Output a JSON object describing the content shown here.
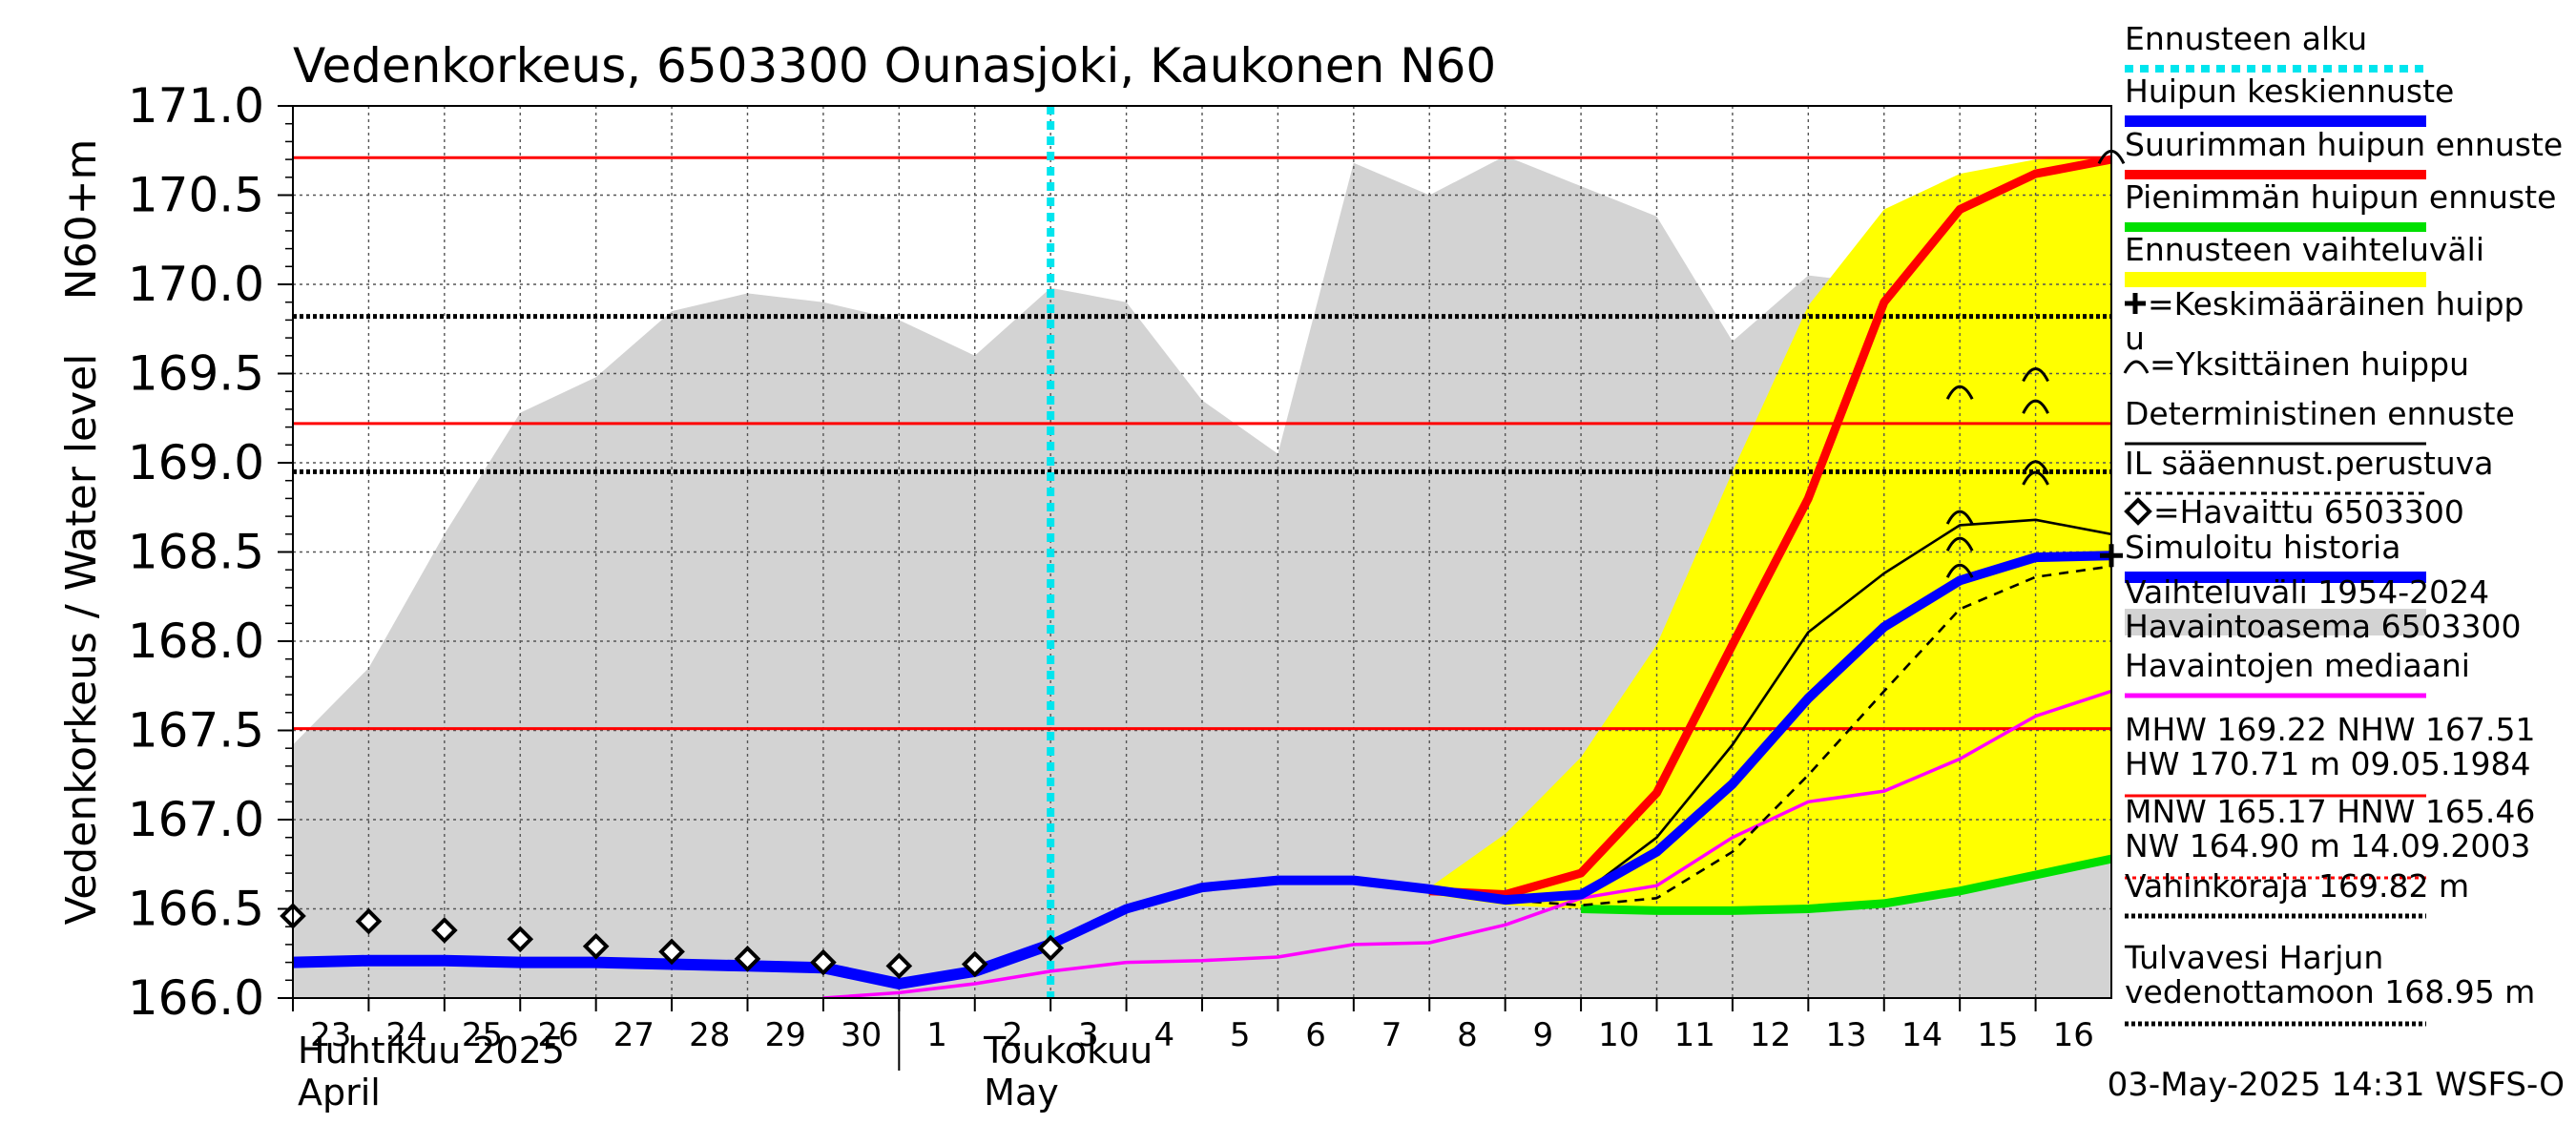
{
  "chart_data": {
    "type": "line",
    "title": "Vedenkorkeus, 6503300 Ounasjoki, Kaukonen N60",
    "ylabel_outer": "Vedenkorkeus / Water level",
    "ylabel_inner": "N60+m",
    "ylim": [
      166.0,
      171.0
    ],
    "y_ticks": [
      "166.0",
      "166.5",
      "167.0",
      "167.5",
      "168.0",
      "168.5",
      "169.0",
      "169.5",
      "170.0",
      "170.5",
      "171.0"
    ],
    "x_days": [
      "2025-04-23",
      "2025-04-24",
      "2025-04-25",
      "2025-04-26",
      "2025-04-27",
      "2025-04-28",
      "2025-04-29",
      "2025-04-30",
      "2025-05-01",
      "2025-05-02",
      "2025-05-03",
      "2025-05-04",
      "2025-05-05",
      "2025-05-06",
      "2025-05-07",
      "2025-05-08",
      "2025-05-09",
      "2025-05-10",
      "2025-05-11",
      "2025-05-12",
      "2025-05-13",
      "2025-05-14",
      "2025-05-15",
      "2025-05-16"
    ],
    "x_tick_labels": [
      "23",
      "24",
      "25",
      "26",
      "27",
      "28",
      "29",
      "30",
      "1",
      "2",
      "3",
      "4",
      "5",
      "6",
      "7",
      "8",
      "9",
      "10",
      "11",
      "12",
      "13",
      "14",
      "15",
      "16"
    ],
    "month_labels": [
      {
        "line1": "Huhtikuu  2025",
        "line2": "April"
      },
      {
        "line1": "Toukokuu",
        "line2": "May"
      }
    ],
    "forecast_start": "2025-05-03",
    "grid": true,
    "reference_lines": [
      {
        "name": "HW",
        "value": 170.71,
        "color": "#ff0000",
        "style": "solid"
      },
      {
        "name": "MHW",
        "value": 169.22,
        "color": "#ff0000",
        "style": "solid"
      },
      {
        "name": "NHW",
        "value": 167.51,
        "color": "#ff0000",
        "style": "solid"
      },
      {
        "name": "Vahinkoraja",
        "value": 169.82,
        "color": "#000000",
        "style": "dotted"
      },
      {
        "name": "Tulvavesi Harjun vedenottamoon",
        "value": 168.95,
        "color": "#000000",
        "style": "dotted"
      }
    ],
    "series": [
      {
        "name": "Vaihteluväli 1954-2024 Havaintoasema 6503300",
        "kind": "area",
        "color": "#d3d3d3",
        "x": [
          "2025-04-23",
          "2025-04-24",
          "2025-04-25",
          "2025-04-26",
          "2025-04-27",
          "2025-04-28",
          "2025-04-29",
          "2025-04-30",
          "2025-05-01",
          "2025-05-02",
          "2025-05-03",
          "2025-05-04",
          "2025-05-05",
          "2025-05-06",
          "2025-05-07",
          "2025-05-08",
          "2025-05-09",
          "2025-05-10",
          "2025-05-11",
          "2025-05-12",
          "2025-05-13",
          "2025-05-14",
          "2025-05-15",
          "2025-05-16",
          "2025-05-17"
        ],
        "values": [
          167.42,
          167.85,
          168.6,
          169.28,
          169.48,
          169.85,
          169.95,
          169.9,
          169.8,
          169.6,
          169.98,
          169.9,
          169.35,
          169.05,
          170.68,
          170.5,
          170.72,
          170.55,
          170.38,
          169.68,
          170.05,
          170.0,
          170.12,
          170.1,
          169.98
        ]
      },
      {
        "name": "Ennusteen vaihteluväli",
        "kind": "band",
        "color": "#ffff00",
        "x": [
          "2025-05-08",
          "2025-05-09",
          "2025-05-10",
          "2025-05-11",
          "2025-05-12",
          "2025-05-13",
          "2025-05-14",
          "2025-05-15",
          "2025-05-16",
          "2025-05-17"
        ],
        "upper": [
          166.62,
          166.92,
          167.35,
          167.98,
          168.95,
          169.88,
          170.42,
          170.62,
          170.7,
          170.72
        ],
        "lower": [
          166.58,
          166.52,
          166.5,
          166.49,
          166.49,
          166.5,
          166.53,
          166.6,
          166.69,
          166.78
        ]
      },
      {
        "name": "Havaintojen mediaani",
        "color": "#ff00ff",
        "x": [
          "2025-04-30",
          "2025-05-01",
          "2025-05-02",
          "2025-05-03",
          "2025-05-04",
          "2025-05-05",
          "2025-05-06",
          "2025-05-07",
          "2025-05-08",
          "2025-05-09",
          "2025-05-10",
          "2025-05-11",
          "2025-05-12",
          "2025-05-13",
          "2025-05-14",
          "2025-05-15",
          "2025-05-16",
          "2025-05-17"
        ],
        "values": [
          166.0,
          166.03,
          166.08,
          166.15,
          166.2,
          166.21,
          166.23,
          166.3,
          166.31,
          166.41,
          166.56,
          166.63,
          166.9,
          167.1,
          167.16,
          167.34,
          167.58,
          167.72
        ]
      },
      {
        "name": "Suurimman huipun ennuste",
        "color": "#ff0000",
        "x": [
          "2025-05-08",
          "2025-05-09",
          "2025-05-10",
          "2025-05-11",
          "2025-05-12",
          "2025-05-13",
          "2025-05-14",
          "2025-05-15",
          "2025-05-16",
          "2025-05-17"
        ],
        "values": [
          166.6,
          166.58,
          166.7,
          167.15,
          167.98,
          168.8,
          169.9,
          170.42,
          170.62,
          170.7
        ]
      },
      {
        "name": "Pienimmän huipun ennuste",
        "color": "#00e000",
        "x": [
          "2025-05-10",
          "2025-05-11",
          "2025-05-12",
          "2025-05-13",
          "2025-05-14",
          "2025-05-15",
          "2025-05-16",
          "2025-05-17"
        ],
        "values": [
          166.5,
          166.49,
          166.49,
          166.5,
          166.53,
          166.6,
          166.69,
          166.78
        ]
      },
      {
        "name": "Deterministinen ennuste",
        "color": "#000000",
        "x": [
          "2025-05-08",
          "2025-05-09",
          "2025-05-10",
          "2025-05-11",
          "2025-05-12",
          "2025-05-13",
          "2025-05-14",
          "2025-05-15",
          "2025-05-16",
          "2025-05-17"
        ],
        "values": [
          166.6,
          166.55,
          166.58,
          166.9,
          167.42,
          168.05,
          168.38,
          168.65,
          168.68,
          168.6
        ]
      },
      {
        "name": "IL sääennust.perustuva",
        "color": "#000000",
        "dashed": true,
        "x": [
          "2025-05-08",
          "2025-05-09",
          "2025-05-10",
          "2025-05-11",
          "2025-05-12",
          "2025-05-13",
          "2025-05-14",
          "2025-05-15",
          "2025-05-16",
          "2025-05-17"
        ],
        "values": [
          166.6,
          166.55,
          166.52,
          166.56,
          166.82,
          167.25,
          167.72,
          168.18,
          168.36,
          168.42
        ]
      },
      {
        "name": "Simuloitu historia",
        "color": "#0000ff",
        "x": [
          "2025-04-23",
          "2025-04-24",
          "2025-04-25",
          "2025-04-26",
          "2025-04-27",
          "2025-04-28",
          "2025-04-29",
          "2025-04-30",
          "2025-05-01",
          "2025-05-02",
          "2025-05-03"
        ],
        "values": [
          166.2,
          166.21,
          166.21,
          166.2,
          166.2,
          166.19,
          166.18,
          166.17,
          166.08,
          166.15,
          166.3
        ]
      },
      {
        "name": "Huipun keskiennuste",
        "color": "#0000ff",
        "x": [
          "2025-05-03",
          "2025-05-04",
          "2025-05-05",
          "2025-05-06",
          "2025-05-07",
          "2025-05-08",
          "2025-05-09",
          "2025-05-10",
          "2025-05-11",
          "2025-05-12",
          "2025-05-13",
          "2025-05-14",
          "2025-05-15",
          "2025-05-16",
          "2025-05-17"
        ],
        "values": [
          166.3,
          166.5,
          166.62,
          166.66,
          166.66,
          166.61,
          166.55,
          166.58,
          166.82,
          167.2,
          167.68,
          168.08,
          168.34,
          168.47,
          168.48
        ]
      },
      {
        "name": "Havaittu 6503300",
        "kind": "markers",
        "marker": "diamond",
        "x": [
          "2025-04-23",
          "2025-04-24",
          "2025-04-25",
          "2025-04-26",
          "2025-04-27",
          "2025-04-28",
          "2025-04-29",
          "2025-04-30",
          "2025-05-01",
          "2025-05-02",
          "2025-05-03"
        ],
        "values": [
          166.46,
          166.43,
          166.38,
          166.33,
          166.29,
          166.26,
          166.22,
          166.2,
          166.18,
          166.19,
          166.28
        ]
      }
    ],
    "peak_markers": [
      {
        "x": "2025-05-15",
        "y": 169.4
      },
      {
        "x": "2025-05-15",
        "y": 168.7
      },
      {
        "x": "2025-05-15",
        "y": 168.55
      },
      {
        "x": "2025-05-15",
        "y": 168.4
      },
      {
        "x": "2025-05-16",
        "y": 169.5
      },
      {
        "x": "2025-05-16",
        "y": 169.32
      },
      {
        "x": "2025-05-16",
        "y": 168.98
      },
      {
        "x": "2025-05-16",
        "y": 168.92
      },
      {
        "x": "2025-05-17",
        "y": 170.72
      }
    ],
    "mean_peak_marker": {
      "x": "2025-05-17",
      "y": 168.48
    },
    "legend_position": "right",
    "legend": [
      {
        "id": "ennusteen-alku",
        "line1": "Ennusteen alku",
        "sample": "cyan-dotted"
      },
      {
        "id": "huipun-keskiennuste",
        "line1": "Huipun keskiennuste",
        "sample": "blue"
      },
      {
        "id": "suurimman-huipun-ennuste",
        "line1": "Suurimman huipun ennuste",
        "sample": "red"
      },
      {
        "id": "pienimman-huipun-ennuste",
        "line1": "Pienimmän huipun ennuste",
        "sample": "green"
      },
      {
        "id": "ennusteen-vaihteluvali",
        "line1": "Ennusteen vaihteluväli",
        "sample": "yellow"
      },
      {
        "id": "keskimaarainen-huippu",
        "line1": "=Keskimääräinen huipp",
        "line2": "u",
        "sample": "plus-icon"
      },
      {
        "id": "yksittainen-huippu",
        "line1": "=Yksittäinen huippu",
        "sample": "arc-icon"
      },
      {
        "id": "deterministinen-ennuste",
        "line1": "Deterministinen ennuste",
        "sample": "black"
      },
      {
        "id": "il-saaennust",
        "line1": "IL sääennust.perustuva",
        "sample": "black-dashed"
      },
      {
        "id": "havaittu",
        "line1": "=Havaittu 6503300",
        "sample": "diamond-icon"
      },
      {
        "id": "simuloitu-historia",
        "line1": "Simuloitu historia",
        "sample": "blue"
      },
      {
        "id": "vaihteluvali",
        "line1": "Vaihteluväli 1954-2024",
        "line2": " Havaintoasema 6503300",
        "sample": "gray"
      },
      {
        "id": "havaintojen-mediaani",
        "line1": "Havaintojen mediaani",
        "sample": "magenta"
      },
      {
        "id": "mhw",
        "line1": "MHW 169.22 NHW 167.51",
        "line2": "HW 170.71 m 09.05.1984",
        "sample": "red-thin"
      },
      {
        "id": "mnw",
        "line1": "MNW 165.17 HNW 165.46",
        "line2": "NW 164.90 m 14.09.2003",
        "sample": "red-dotted"
      },
      {
        "id": "vahinkoraja",
        "line1": "Vahinkoraja 169.82 m",
        "sample": "black-dotted"
      },
      {
        "id": "tulvavesi",
        "line1": "Tulvavesi Harjun",
        "line2": "vedenottamoon 168.95 m",
        "sample": "black-dotted"
      }
    ],
    "footer": "03-May-2025 14:31 WSFS-O"
  }
}
